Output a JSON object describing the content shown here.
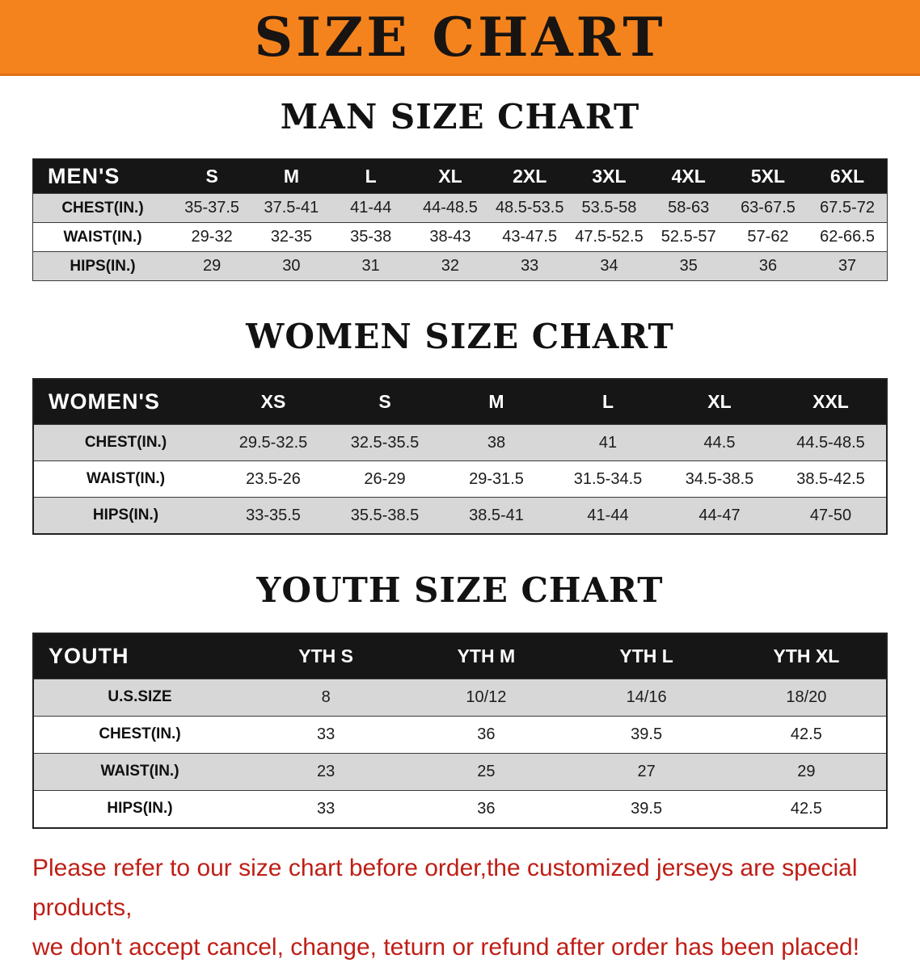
{
  "banner": {
    "title": "SIZE CHART"
  },
  "colors": {
    "banner_orange": "#f5831d",
    "header_black": "#161616",
    "row_shade": "#d7d7d7",
    "disclaimer_red": "#bf1e16"
  },
  "sections": [
    {
      "title": "MAN SIZE CHART",
      "table_label": "MEN'S",
      "columns": [
        "S",
        "M",
        "L",
        "XL",
        "2XL",
        "3XL",
        "4XL",
        "5XL",
        "6XL"
      ],
      "rows": [
        {
          "label": "CHEST(IN.)",
          "values": [
            "35-37.5",
            "37.5-41",
            "41-44",
            "44-48.5",
            "48.5-53.5",
            "53.5-58",
            "58-63",
            "63-67.5",
            "67.5-72"
          ]
        },
        {
          "label": "WAIST(IN.)",
          "values": [
            "29-32",
            "32-35",
            "35-38",
            "38-43",
            "43-47.5",
            "47.5-52.5",
            "52.5-57",
            "57-62",
            "62-66.5"
          ]
        },
        {
          "label": "HIPS(IN.)",
          "values": [
            "29",
            "30",
            "31",
            "32",
            "33",
            "34",
            "35",
            "36",
            "37"
          ]
        }
      ]
    },
    {
      "title": "WOMEN SIZE CHART",
      "table_label": "WOMEN'S",
      "columns": [
        "XS",
        "S",
        "M",
        "L",
        "XL",
        "XXL"
      ],
      "rows": [
        {
          "label": "CHEST(IN.)",
          "values": [
            "29.5-32.5",
            "32.5-35.5",
            "38",
            "41",
            "44.5",
            "44.5-48.5"
          ]
        },
        {
          "label": "WAIST(IN.)",
          "values": [
            "23.5-26",
            "26-29",
            "29-31.5",
            "31.5-34.5",
            "34.5-38.5",
            "38.5-42.5"
          ]
        },
        {
          "label": "HIPS(IN.)",
          "values": [
            "33-35.5",
            "35.5-38.5",
            "38.5-41",
            "41-44",
            "44-47",
            "47-50"
          ]
        }
      ]
    },
    {
      "title": "YOUTH SIZE CHART",
      "table_label": "YOUTH",
      "columns": [
        "YTH S",
        "YTH M",
        "YTH L",
        "YTH XL"
      ],
      "rows": [
        {
          "label": "U.S.SIZE",
          "values": [
            "8",
            "10/12",
            "14/16",
            "18/20"
          ]
        },
        {
          "label": "CHEST(IN.)",
          "values": [
            "33",
            "36",
            "39.5",
            "42.5"
          ]
        },
        {
          "label": "WAIST(IN.)",
          "values": [
            "23",
            "25",
            "27",
            "29"
          ]
        },
        {
          "label": "HIPS(IN.)",
          "values": [
            "33",
            "36",
            "39.5",
            "42.5"
          ]
        }
      ]
    }
  ],
  "disclaimer": {
    "line1": "Please refer to our size chart before order,the customized jerseys are special products,",
    "line2": "we don't accept cancel, change, teturn or refund after order has been placed!"
  }
}
